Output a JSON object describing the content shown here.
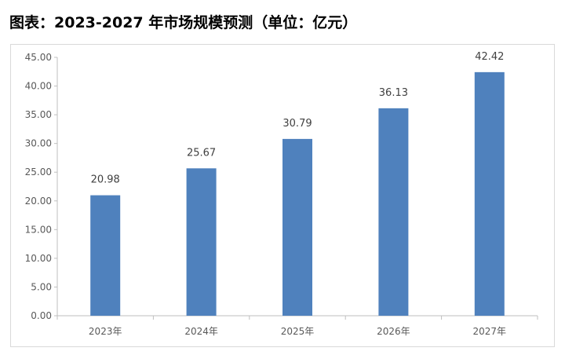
{
  "title": "图表：2023-2027 年市场规模预测（单位：亿元）",
  "chart_data": {
    "type": "bar",
    "categories": [
      "2023年",
      "2024年",
      "2025年",
      "2026年",
      "2027年"
    ],
    "values": [
      20.98,
      25.67,
      30.79,
      36.13,
      42.42
    ],
    "data_labels": [
      "20.98",
      "25.67",
      "30.79",
      "36.13",
      "42.42"
    ],
    "ylim": [
      0,
      45
    ],
    "yticks": [
      "0.00",
      "5.00",
      "10.00",
      "15.00",
      "20.00",
      "25.00",
      "30.00",
      "35.00",
      "40.00",
      "45.00"
    ],
    "bar_color": "#4f81bd",
    "grid": false,
    "legend": "none"
  }
}
